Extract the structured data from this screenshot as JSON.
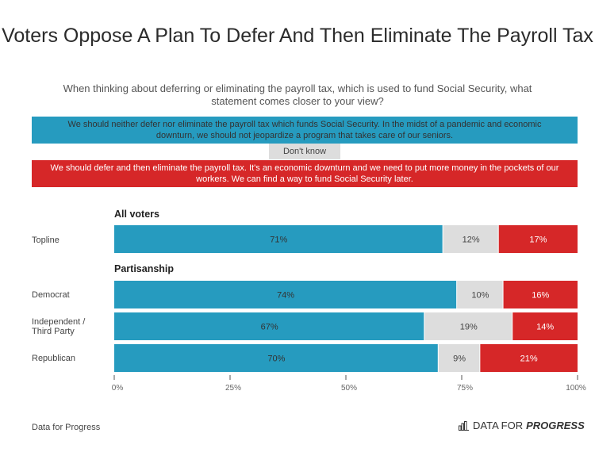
{
  "header": {
    "title": "Voters Oppose A Plan To Defer And Then Eliminate The Payroll Tax",
    "subtitle": "When thinking about deferring or eliminating the payroll tax, which is used to fund Social Security, what statement comes closer to your view?"
  },
  "legend": [
    {
      "label": "We should neither defer nor eliminate the payroll tax which funds Social Security. In the midst of a pandemic and economic downturn, we should not jeopardize a program that takes care of our seniors.",
      "color": "#269bbf"
    },
    {
      "label": "Don't know",
      "color": "#dddddd"
    },
    {
      "label": "We should defer and then eliminate the payroll tax. It's an economic downturn and we need to put more money in the pockets of our workers. We can find a way to fund Social Security later.",
      "color": "#d62728"
    }
  ],
  "footer": {
    "source": "Data for Progress",
    "brand_light": "DATA FOR",
    "brand_bold": "PROGRESS"
  },
  "chart_data": {
    "type": "bar",
    "orientation": "horizontal-stacked-100",
    "title": "Voters Oppose A Plan To Defer And Then Eliminate The Payroll Tax",
    "xlim": [
      0,
      100
    ],
    "xticks": [
      "0%",
      "25%",
      "50%",
      "75%",
      "100%"
    ],
    "series_names": [
      "Neither defer nor eliminate",
      "Don't know",
      "Defer and then eliminate"
    ],
    "series_colors": [
      "#269bbf",
      "#dddddd",
      "#d62728"
    ],
    "groups": [
      {
        "name": "All voters",
        "rows": [
          {
            "label": "Topline",
            "values": [
              71,
              12,
              17
            ]
          }
        ]
      },
      {
        "name": "Partisanship",
        "rows": [
          {
            "label": "Democrat",
            "values": [
              74,
              10,
              16
            ]
          },
          {
            "label": "Independent / Third Party",
            "values": [
              67,
              19,
              14
            ]
          },
          {
            "label": "Republican",
            "values": [
              70,
              9,
              21
            ]
          }
        ]
      }
    ]
  }
}
